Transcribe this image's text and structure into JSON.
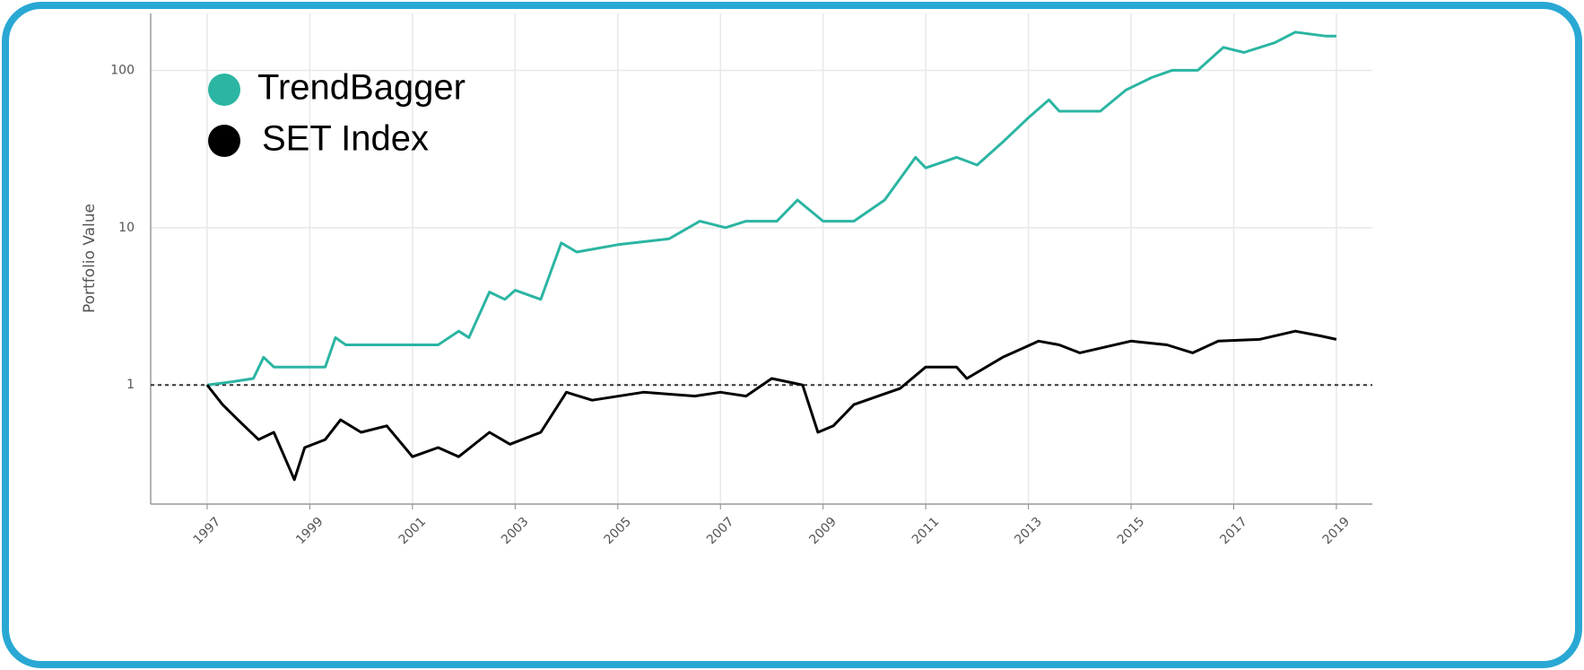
{
  "chart_data": {
    "type": "line",
    "y_label": "Portfolio Value",
    "log_scale": true,
    "grid": true,
    "legend": "upper left",
    "hline": 1,
    "xlim": [
      1995.9,
      2019.7
    ],
    "xticks": [
      1997,
      1999,
      2001,
      2003,
      2005,
      2007,
      2009,
      2011,
      2013,
      2015,
      2017,
      2019
    ],
    "ylim": [
      0.175,
      230
    ],
    "yticks": [
      1,
      10,
      100
    ],
    "series": [
      {
        "name": "TrendBagger",
        "color": "#2bb5a2",
        "x": [
          1997.0,
          1997.5,
          1997.9,
          1998.1,
          1998.3,
          1999.3,
          1999.5,
          1999.7,
          2000.5,
          2001.5,
          2001.9,
          2002.1,
          2002.5,
          2002.8,
          2003.0,
          2003.5,
          2003.9,
          2004.2,
          2005.0,
          2006.0,
          2006.6,
          2007.1,
          2007.5,
          2008.1,
          2008.5,
          2009.0,
          2009.6,
          2010.2,
          2010.8,
          2011.0,
          2011.6,
          2012.0,
          2012.5,
          2013.0,
          2013.4,
          2013.6,
          2014.4,
          2014.9,
          2015.4,
          2015.8,
          2016.3,
          2016.8,
          2017.2,
          2017.8,
          2018.2,
          2018.8,
          2019.0
        ],
        "values": [
          1.0,
          1.05,
          1.1,
          1.5,
          1.3,
          1.3,
          2.0,
          1.8,
          1.8,
          1.8,
          2.2,
          2.0,
          3.9,
          3.5,
          4.0,
          3.5,
          8.0,
          7.0,
          7.8,
          8.5,
          11,
          10,
          11,
          11,
          15,
          11,
          11,
          15,
          28,
          24,
          28,
          25,
          35,
          50,
          65,
          55,
          55,
          75,
          90,
          100,
          100,
          140,
          130,
          150,
          175,
          165,
          165
        ]
      },
      {
        "name": "SET Index",
        "color": "#000000",
        "x": [
          1997.0,
          1997.3,
          1997.6,
          1998.0,
          1998.3,
          1998.7,
          1998.9,
          1999.3,
          1999.6,
          2000.0,
          2000.5,
          2001.0,
          2001.5,
          2001.9,
          2002.5,
          2002.9,
          2003.5,
          2004.0,
          2004.5,
          2005.5,
          2006.5,
          2007.0,
          2007.5,
          2008.0,
          2008.6,
          2008.9,
          2009.2,
          2009.6,
          2010.5,
          2011.0,
          2011.6,
          2011.8,
          2012.5,
          2013.2,
          2013.6,
          2014.0,
          2015.0,
          2015.7,
          2016.2,
          2016.7,
          2017.5,
          2018.2,
          2018.7,
          2019.0
        ],
        "values": [
          1.0,
          0.75,
          0.6,
          0.45,
          0.5,
          0.25,
          0.4,
          0.45,
          0.6,
          0.5,
          0.55,
          0.35,
          0.4,
          0.35,
          0.5,
          0.42,
          0.5,
          0.9,
          0.8,
          0.9,
          0.85,
          0.9,
          0.85,
          1.1,
          1.0,
          0.5,
          0.55,
          0.75,
          0.95,
          1.3,
          1.3,
          1.1,
          1.5,
          1.9,
          1.8,
          1.6,
          1.9,
          1.8,
          1.6,
          1.9,
          1.95,
          2.2,
          2.05,
          1.95
        ]
      }
    ]
  }
}
